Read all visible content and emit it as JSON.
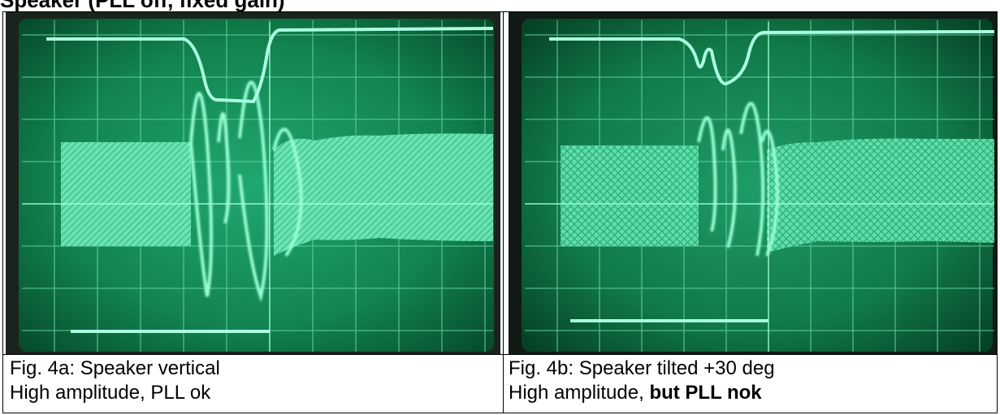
{
  "heading": "Speaker (PLL off, fixed gain)",
  "figures": [
    {
      "caption_line1": "Fig. 4a: Speaker vertical",
      "caption_line2": "High amplitude, PLL ok",
      "caption_line2_bold": ""
    },
    {
      "caption_line1": "Fig. 4b: Speaker tilted +30 deg",
      "caption_line2": "High amplitude, ",
      "caption_line2_bold": "but PLL nok"
    }
  ],
  "colors": {
    "trace": "#8dfcd2",
    "screen": "#0f7a52",
    "graticule": "#7be2b4",
    "bezel": "#1a241c"
  }
}
